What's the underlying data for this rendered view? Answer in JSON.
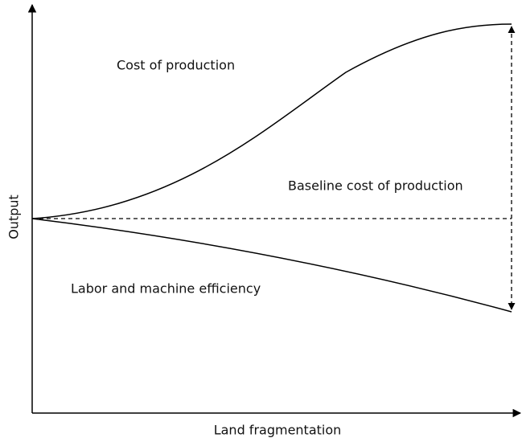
{
  "axes": {
    "x_label": "Land fragmentation",
    "y_label": "Output"
  },
  "curves": [
    {
      "label": "Cost of production"
    },
    {
      "label": "Labor and machine efficiency"
    }
  ],
  "baseline": {
    "label": "Baseline cost of production"
  }
}
